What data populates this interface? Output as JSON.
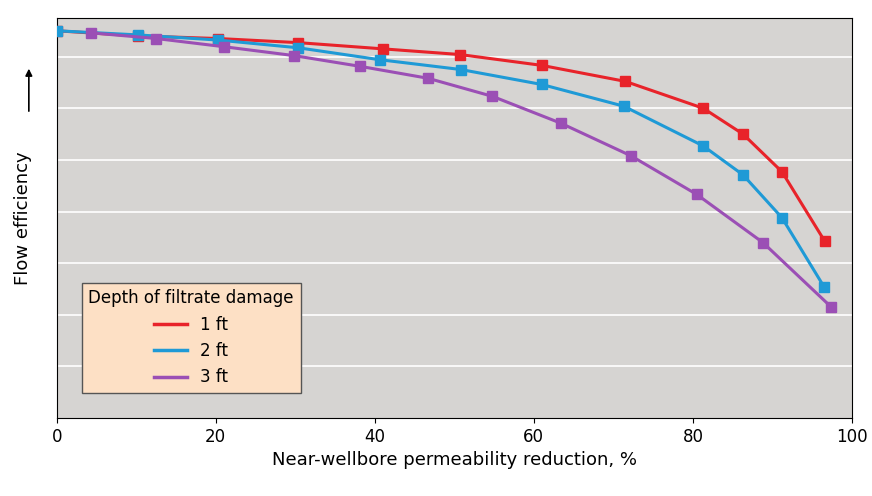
{
  "chart_data": {
    "type": "line",
    "x_label": "Near-wellbore permeability reduction, %",
    "y_label": "Flow efficiency",
    "xlim": [
      0,
      100
    ],
    "xticks": [
      0,
      20,
      40,
      60,
      80,
      100
    ],
    "ylim": [
      0,
      7.75
    ],
    "yticks": [
      1,
      2,
      3,
      4,
      5,
      6,
      7
    ],
    "tick_labels": "x",
    "grid": true,
    "legend": "lower left",
    "legend_title": "Depth of filtrate damage",
    "marker": "square",
    "line_style": "solid",
    "series": [
      {
        "name": "1 ft",
        "color": "#e8232a",
        "x": [
          0,
          10.2,
          20.3,
          30.4,
          41,
          50.7,
          61,
          71.5,
          81.3,
          86.3,
          91.2,
          96.6
        ],
        "values": [
          7.5,
          7.4,
          7.35,
          7.27,
          7.15,
          7.04,
          6.83,
          6.52,
          6.0,
          5.5,
          4.77,
          3.42
        ]
      },
      {
        "name": "2 ft",
        "color": "#1f9ad6",
        "x": [
          0,
          10.2,
          20.3,
          30.4,
          40.6,
          50.8,
          61,
          71.3,
          81.3,
          86.3,
          91.2,
          96.5
        ],
        "values": [
          7.5,
          7.42,
          7.32,
          7.17,
          6.94,
          6.75,
          6.46,
          6.04,
          5.27,
          4.71,
          3.88,
          2.54
        ]
      },
      {
        "name": "3 ft",
        "color": "#9b4fb5",
        "x": [
          4.3,
          12.5,
          21.1,
          29.8,
          38.2,
          46.7,
          54.8,
          63.4,
          72.2,
          80.5,
          88.8,
          97.4
        ],
        "values": [
          7.46,
          7.35,
          7.19,
          7.02,
          6.81,
          6.58,
          6.23,
          5.71,
          5.08,
          4.33,
          3.4,
          2.15
        ]
      }
    ]
  }
}
